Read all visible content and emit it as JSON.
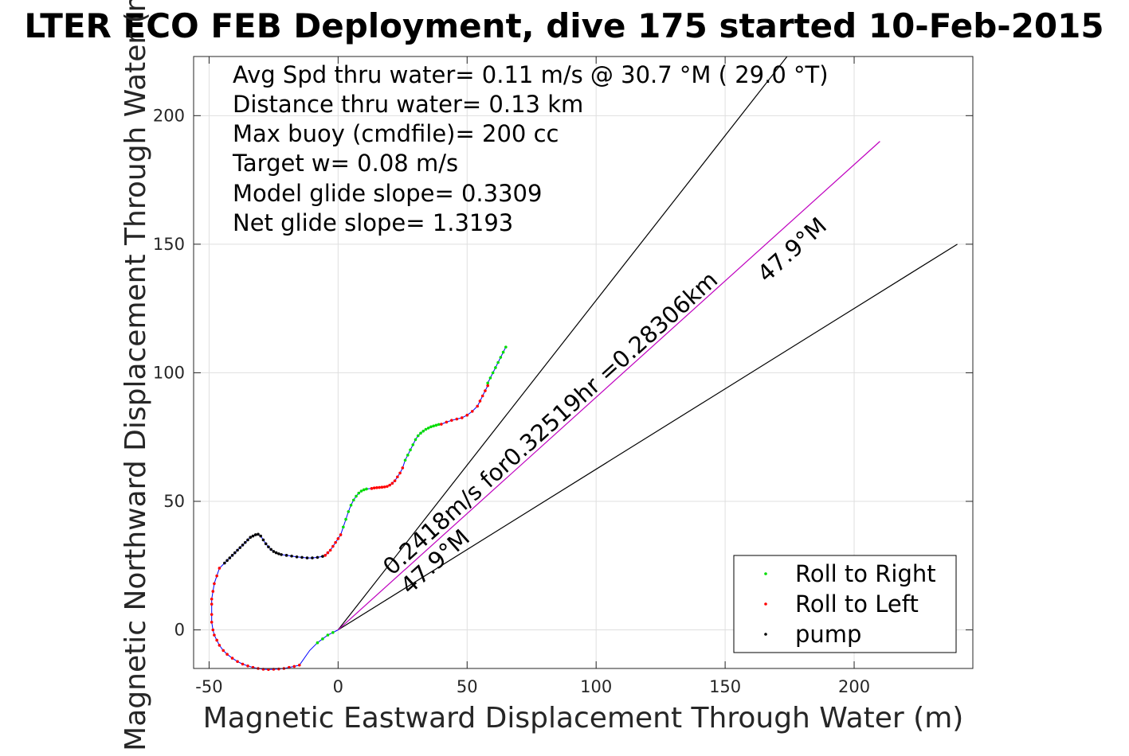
{
  "chart_data": {
    "type": "scatter",
    "title": "LTER ECO FEB Deployment, dive 175 started 10-Feb-2015",
    "xlabel": "Magnetic Eastward Displacement Through Water (m)",
    "ylabel": "Magnetic Northward Displacement Through Water (m)",
    "xlim": [
      -56,
      246
    ],
    "ylim": [
      -15,
      223
    ],
    "xticks": [
      -50,
      0,
      50,
      100,
      150,
      200
    ],
    "yticks": [
      0,
      50,
      100,
      150,
      200
    ],
    "grid": true,
    "legend_position": "bottom-right",
    "info_lines": [
      "Avg Spd thru water=  0.11 m/s @  30.7 °M ( 29.0 °T)",
      "Distance thru water=  0.13 km",
      "Max buoy (cmdfile)= 200 cc",
      "Target w= 0.08 m/s",
      "Model glide slope= 0.3309",
      "Net glide slope= 1.3193"
    ],
    "annotations": [
      "0.2418m/s for0.32519hr =0.28306km",
      "47.9°M",
      "47.9°M"
    ],
    "reference_lines": [
      {
        "x": [
          0,
          174
        ],
        "y": [
          0,
          223
        ],
        "color": "#000000"
      },
      {
        "x": [
          0,
          240
        ],
        "y": [
          0,
          150
        ],
        "color": "#000000"
      },
      {
        "x": [
          0,
          210
        ],
        "y": [
          0,
          190
        ],
        "color": "#bf00bf"
      }
    ],
    "track_color": "#0000ff",
    "series": [
      {
        "name": "Roll to Right",
        "color": "#00dd00",
        "points": [
          [
            -8,
            -5
          ],
          [
            -6,
            -3.5
          ],
          [
            -4,
            -2
          ],
          [
            -2,
            -1
          ],
          [
            2,
            40
          ],
          [
            3,
            43
          ],
          [
            4,
            46
          ],
          [
            5,
            48.5
          ],
          [
            6,
            50.5
          ],
          [
            7,
            52
          ],
          [
            8,
            53.2
          ],
          [
            9,
            54
          ],
          [
            10,
            54.5
          ],
          [
            11,
            54.8
          ],
          [
            26,
            66
          ],
          [
            27,
            68
          ],
          [
            28,
            70
          ],
          [
            29,
            72
          ],
          [
            30,
            74
          ],
          [
            31,
            75.5
          ],
          [
            32,
            76.5
          ],
          [
            33,
            77.3
          ],
          [
            34,
            78
          ],
          [
            35,
            78.5
          ],
          [
            36,
            79
          ],
          [
            37,
            79.3
          ],
          [
            38,
            79.6
          ],
          [
            39,
            79.9
          ],
          [
            58,
            96
          ],
          [
            59,
            98
          ],
          [
            60,
            100
          ],
          [
            61,
            102
          ],
          [
            62,
            104
          ],
          [
            63,
            106
          ],
          [
            64,
            108
          ],
          [
            65,
            110
          ]
        ]
      },
      {
        "name": "Roll to Left",
        "color": "#ff0000",
        "points": [
          [
            -49,
            10
          ],
          [
            -49,
            12
          ],
          [
            -48.5,
            15
          ],
          [
            -48,
            18
          ],
          [
            -47,
            21
          ],
          [
            -46,
            24
          ],
          [
            -49,
            6
          ],
          [
            -49,
            3
          ],
          [
            -48.5,
            0
          ],
          [
            -48,
            -2
          ],
          [
            -47,
            -4
          ],
          [
            -46,
            -6
          ],
          [
            -44.5,
            -8
          ],
          [
            -43,
            -9.5
          ],
          [
            -41,
            -11
          ],
          [
            -39,
            -12.3
          ],
          [
            -37,
            -13.3
          ],
          [
            -35,
            -14
          ],
          [
            -33,
            -14.6
          ],
          [
            -31,
            -15
          ],
          [
            -29,
            -15.3
          ],
          [
            -27,
            -15.4
          ],
          [
            -25,
            -15.3
          ],
          [
            -23,
            -15.2
          ],
          [
            -21,
            -15
          ],
          [
            -19,
            -14.6
          ],
          [
            -17,
            -14.2
          ],
          [
            -15,
            -13.7
          ],
          [
            -5,
            29
          ],
          [
            -4,
            30
          ],
          [
            -3,
            31
          ],
          [
            -2,
            32.5
          ],
          [
            -1,
            34
          ],
          [
            0,
            35.5
          ],
          [
            1,
            37
          ],
          [
            13,
            55
          ],
          [
            14,
            55.2
          ],
          [
            15,
            55.3
          ],
          [
            16,
            55.4
          ],
          [
            17,
            55.5
          ],
          [
            18,
            55.6
          ],
          [
            19,
            55.8
          ],
          [
            20,
            56.3
          ],
          [
            21,
            57
          ],
          [
            22,
            58
          ],
          [
            23,
            59.5
          ],
          [
            24,
            61
          ],
          [
            25,
            63
          ],
          [
            40,
            80
          ],
          [
            42,
            80.8
          ],
          [
            44,
            81.5
          ],
          [
            46,
            82
          ],
          [
            48,
            82.5
          ],
          [
            50,
            83.5
          ],
          [
            52,
            85
          ],
          [
            54,
            87
          ],
          [
            55,
            89
          ],
          [
            56,
            91
          ],
          [
            57,
            93
          ],
          [
            58,
            95
          ]
        ]
      },
      {
        "name": "pump",
        "color": "#000000",
        "points": [
          [
            -44,
            26
          ],
          [
            -43,
            27
          ],
          [
            -42,
            28
          ],
          [
            -41,
            29
          ],
          [
            -40,
            30
          ],
          [
            -39,
            31
          ],
          [
            -38,
            32
          ],
          [
            -37,
            33
          ],
          [
            -36,
            34
          ],
          [
            -35,
            35
          ],
          [
            -34,
            36
          ],
          [
            -33,
            36.5
          ],
          [
            -32,
            37
          ],
          [
            -31,
            37.2
          ],
          [
            -30,
            36.5
          ],
          [
            -29,
            35
          ],
          [
            -28,
            33.5
          ],
          [
            -27,
            32.3
          ],
          [
            -26,
            31.3
          ],
          [
            -25,
            30.5
          ],
          [
            -24,
            30
          ],
          [
            -23,
            29.6
          ],
          [
            -22,
            29.3
          ],
          [
            -20,
            29
          ],
          [
            -18,
            28.7
          ],
          [
            -16,
            28.4
          ],
          [
            -14,
            28.2
          ],
          [
            -12,
            28
          ],
          [
            -10,
            28
          ],
          [
            -8,
            28.2
          ],
          [
            -6,
            28.6
          ]
        ]
      }
    ],
    "track": [
      [
        0,
        0
      ],
      [
        -2,
        -1
      ],
      [
        -4,
        -2
      ],
      [
        -6,
        -3.5
      ],
      [
        -8,
        -5
      ],
      [
        -11,
        -8
      ],
      [
        -15,
        -13.7
      ],
      [
        -17,
        -14.2
      ],
      [
        -19,
        -14.6
      ],
      [
        -21,
        -15
      ],
      [
        -23,
        -15.2
      ],
      [
        -25,
        -15.3
      ],
      [
        -27,
        -15.4
      ],
      [
        -29,
        -15.3
      ],
      [
        -31,
        -15
      ],
      [
        -33,
        -14.6
      ],
      [
        -35,
        -14
      ],
      [
        -37,
        -13.3
      ],
      [
        -39,
        -12.3
      ],
      [
        -41,
        -11
      ],
      [
        -43,
        -9.5
      ],
      [
        -44.5,
        -8
      ],
      [
        -46,
        -6
      ],
      [
        -47,
        -4
      ],
      [
        -48,
        -2
      ],
      [
        -48.5,
        0
      ],
      [
        -49,
        3
      ],
      [
        -49,
        6
      ],
      [
        -49,
        10
      ],
      [
        -49,
        12
      ],
      [
        -48.5,
        15
      ],
      [
        -48,
        18
      ],
      [
        -47,
        21
      ],
      [
        -46,
        24
      ],
      [
        -44,
        26
      ],
      [
        -43,
        27
      ],
      [
        -42,
        28
      ],
      [
        -41,
        29
      ],
      [
        -40,
        30
      ],
      [
        -39,
        31
      ],
      [
        -38,
        32
      ],
      [
        -37,
        33
      ],
      [
        -36,
        34
      ],
      [
        -35,
        35
      ],
      [
        -34,
        36
      ],
      [
        -33,
        36.5
      ],
      [
        -32,
        37
      ],
      [
        -31,
        37.2
      ],
      [
        -30,
        36.5
      ],
      [
        -29,
        35
      ],
      [
        -28,
        33.5
      ],
      [
        -27,
        32.3
      ],
      [
        -26,
        31.3
      ],
      [
        -25,
        30.5
      ],
      [
        -24,
        30
      ],
      [
        -23,
        29.6
      ],
      [
        -22,
        29.3
      ],
      [
        -20,
        29
      ],
      [
        -18,
        28.7
      ],
      [
        -16,
        28.4
      ],
      [
        -14,
        28.2
      ],
      [
        -12,
        28
      ],
      [
        -10,
        28
      ],
      [
        -8,
        28.2
      ],
      [
        -6,
        28.6
      ],
      [
        -5,
        29
      ],
      [
        -4,
        30
      ],
      [
        -3,
        31
      ],
      [
        -2,
        32.5
      ],
      [
        -1,
        34
      ],
      [
        0,
        35.5
      ],
      [
        1,
        37
      ],
      [
        2,
        40
      ],
      [
        3,
        43
      ],
      [
        4,
        46
      ],
      [
        5,
        48.5
      ],
      [
        6,
        50.5
      ],
      [
        7,
        52
      ],
      [
        8,
        53.2
      ],
      [
        9,
        54
      ],
      [
        10,
        54.5
      ],
      [
        11,
        54.8
      ],
      [
        13,
        55
      ],
      [
        14,
        55.2
      ],
      [
        15,
        55.3
      ],
      [
        16,
        55.4
      ],
      [
        17,
        55.5
      ],
      [
        18,
        55.6
      ],
      [
        19,
        55.8
      ],
      [
        20,
        56.3
      ],
      [
        21,
        57
      ],
      [
        22,
        58
      ],
      [
        23,
        59.5
      ],
      [
        24,
        61
      ],
      [
        25,
        63
      ],
      [
        26,
        66
      ],
      [
        27,
        68
      ],
      [
        28,
        70
      ],
      [
        29,
        72
      ],
      [
        30,
        74
      ],
      [
        31,
        75.5
      ],
      [
        32,
        76.5
      ],
      [
        33,
        77.3
      ],
      [
        34,
        78
      ],
      [
        35,
        78.5
      ],
      [
        36,
        79
      ],
      [
        37,
        79.3
      ],
      [
        38,
        79.6
      ],
      [
        39,
        79.9
      ],
      [
        40,
        80
      ],
      [
        42,
        80.8
      ],
      [
        44,
        81.5
      ],
      [
        46,
        82
      ],
      [
        48,
        82.5
      ],
      [
        50,
        83.5
      ],
      [
        52,
        85
      ],
      [
        54,
        87
      ],
      [
        55,
        89
      ],
      [
        56,
        91
      ],
      [
        57,
        93
      ],
      [
        58,
        95
      ],
      [
        58,
        96
      ],
      [
        59,
        98
      ],
      [
        60,
        100
      ],
      [
        61,
        102
      ],
      [
        62,
        104
      ],
      [
        63,
        106
      ],
      [
        64,
        108
      ],
      [
        65,
        110
      ]
    ]
  }
}
